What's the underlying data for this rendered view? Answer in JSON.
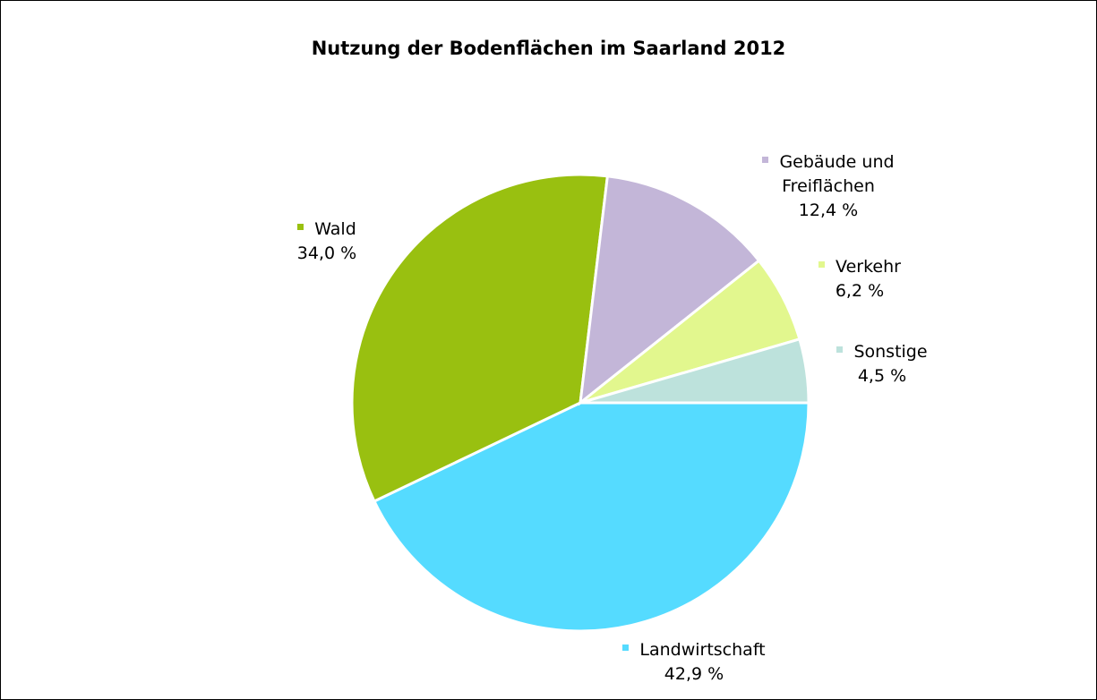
{
  "chart_data": {
    "type": "pie",
    "title": "Nutzung der Bodenflächen im Saarland 2012",
    "categories": [
      "Landwirtschaft",
      "Wald",
      "Gebäude und Freiflächen",
      "Verkehr",
      "Sonstige"
    ],
    "values": [
      42.9,
      34.0,
      12.4,
      6.2,
      4.5
    ],
    "value_labels": [
      "42,9 %",
      "34,0 %",
      "12,4 %",
      "6,2 %",
      "4,5 %"
    ],
    "colors": [
      "#55dbff",
      "#99c010",
      "#c3b6d8",
      "#e2f78e",
      "#bde2dc"
    ]
  }
}
